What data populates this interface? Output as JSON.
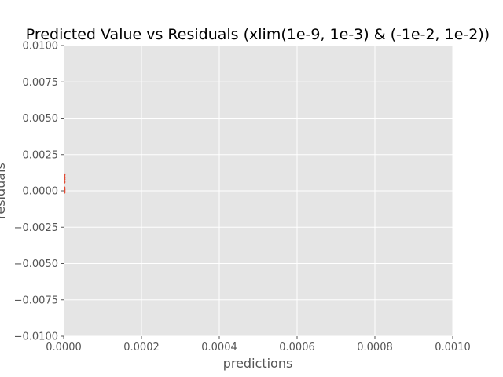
{
  "chart_data": {
    "type": "scatter",
    "title": "Predicted Value vs Residuals (xlim(1e-9, 1e-3) & (-1e-2, 1e-2))",
    "xlabel": "predictions",
    "ylabel": "residuals",
    "xlim": [
      0,
      0.001
    ],
    "ylim": [
      -0.01,
      0.01
    ],
    "grid": true,
    "x_ticks": [
      "0.0000",
      "0.0002",
      "0.0004",
      "0.0006",
      "0.0008",
      "0.0010"
    ],
    "y_ticks": [
      "0.0100",
      "0.0075",
      "0.0050",
      "0.0025",
      "0.0000",
      "−0.0025",
      "−0.0050",
      "−0.0075",
      "−0.0100"
    ],
    "x_tick_values": [
      0,
      0.0002,
      0.0004,
      0.0006,
      0.0008,
      0.001
    ],
    "y_tick_values": [
      0.01,
      0.0075,
      0.005,
      0.0025,
      0,
      -0.0025,
      -0.005,
      -0.0075,
      -0.01
    ],
    "series": [
      {
        "color": "#e24a33",
        "points": [
          {
            "x": 3e-07,
            "y": 0.0011
          },
          {
            "x": 3e-07,
            "y": 0.00095
          },
          {
            "x": 3e-07,
            "y": 0.0008
          },
          {
            "x": 3e-07,
            "y": 0.0006
          },
          {
            "x": 3e-07,
            "y": 0.0002
          },
          {
            "x": 3e-07,
            "y": 0.0001
          },
          {
            "x": 3e-07,
            "y": 0.0
          },
          {
            "x": 3e-07,
            "y": -0.0001
          }
        ]
      }
    ]
  },
  "colors": {
    "plot_background": "#e5e5e5",
    "grid": "#ffffff",
    "tick": "#555555"
  }
}
